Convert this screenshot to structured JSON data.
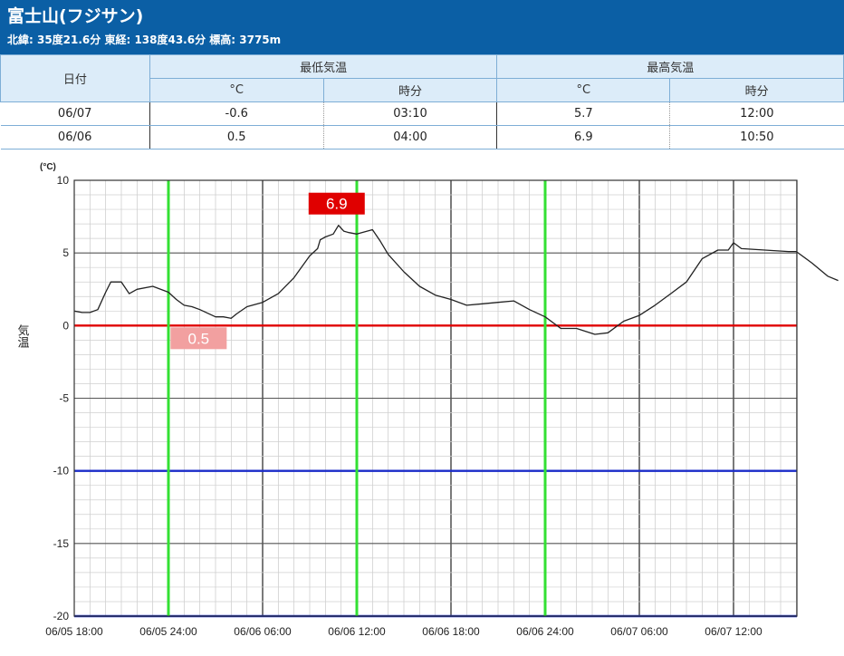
{
  "header": {
    "title": "富士山(フジサン)",
    "subtitle": "北緯: 35度21.6分 東経: 138度43.6分 標高: 3775m",
    "background_color": "#0b5fa5"
  },
  "table": {
    "col_date": "日付",
    "group_min": "最低気温",
    "group_max": "最高気温",
    "unit_c": "°C",
    "unit_time": "時分",
    "rows": [
      {
        "date": "06/07",
        "min_c": "-0.6",
        "min_time": "03:10",
        "max_c": "5.7",
        "max_time": "12:00"
      },
      {
        "date": "06/06",
        "min_c": "0.5",
        "min_time": "04:00",
        "max_c": "6.9",
        "max_time": "10:50"
      }
    ]
  },
  "chart_data": {
    "type": "line",
    "ylabel": "気温",
    "yunit": "(°C)",
    "ylim": [
      -20,
      10
    ],
    "ytick_labels": [
      "10",
      "5",
      "0",
      "-5",
      "-10",
      "-15",
      "-20"
    ],
    "x_start": "06/05 18:00",
    "x_end": "06/07 18:40",
    "xtick_labels": [
      "06/05 18:00",
      "06/05 24:00",
      "06/06 06:00",
      "06/06 12:00",
      "06/06 18:00",
      "06/06 24:00",
      "06/07 06:00",
      "06/07 12:00"
    ],
    "grid": true,
    "series": [
      {
        "color": "#222222",
        "points": [
          [
            "06/05 18:00",
            1.0
          ],
          [
            "06/05 18:30",
            0.9
          ],
          [
            "06/05 19:00",
            0.9
          ],
          [
            "06/05 19:30",
            1.1
          ],
          [
            "06/05 20:00",
            2.3
          ],
          [
            "06/05 20:20",
            3.0
          ],
          [
            "06/05 21:00",
            3.0
          ],
          [
            "06/05 21:30",
            2.2
          ],
          [
            "06/05 22:00",
            2.5
          ],
          [
            "06/05 23:00",
            2.7
          ],
          [
            "06/05 24:00",
            2.3
          ],
          [
            "06/06 00:30",
            1.8
          ],
          [
            "06/06 01:00",
            1.4
          ],
          [
            "06/06 01:30",
            1.3
          ],
          [
            "06/06 02:00",
            1.1
          ],
          [
            "06/06 03:00",
            0.6
          ],
          [
            "06/06 03:30",
            0.6
          ],
          [
            "06/06 04:00",
            0.5
          ],
          [
            "06/06 04:20",
            0.8
          ],
          [
            "06/06 05:00",
            1.3
          ],
          [
            "06/06 06:00",
            1.6
          ],
          [
            "06/06 07:00",
            2.2
          ],
          [
            "06/06 08:00",
            3.3
          ],
          [
            "06/06 09:00",
            4.8
          ],
          [
            "06/06 09:30",
            5.3
          ],
          [
            "06/06 09:40",
            5.9
          ],
          [
            "06/06 10:00",
            6.1
          ],
          [
            "06/06 10:30",
            6.3
          ],
          [
            "06/06 10:50",
            6.9
          ],
          [
            "06/06 11:10",
            6.5
          ],
          [
            "06/06 11:30",
            6.4
          ],
          [
            "06/06 12:00",
            6.3
          ],
          [
            "06/06 13:00",
            6.6
          ],
          [
            "06/06 13:30",
            5.8
          ],
          [
            "06/06 14:00",
            4.9
          ],
          [
            "06/06 15:00",
            3.7
          ],
          [
            "06/06 16:00",
            2.7
          ],
          [
            "06/06 17:00",
            2.1
          ],
          [
            "06/06 18:00",
            1.8
          ],
          [
            "06/06 19:00",
            1.4
          ],
          [
            "06/06 20:00",
            1.5
          ],
          [
            "06/06 21:00",
            1.6
          ],
          [
            "06/06 22:00",
            1.7
          ],
          [
            "06/06 23:00",
            1.1
          ],
          [
            "06/06 24:00",
            0.6
          ],
          [
            "06/07 01:00",
            -0.2
          ],
          [
            "06/07 02:00",
            -0.2
          ],
          [
            "06/07 03:10",
            -0.6
          ],
          [
            "06/07 04:00",
            -0.5
          ],
          [
            "06/07 05:00",
            0.3
          ],
          [
            "06/07 06:00",
            0.7
          ],
          [
            "06/07 07:00",
            1.4
          ],
          [
            "06/07 08:00",
            2.2
          ],
          [
            "06/07 09:00",
            3.0
          ],
          [
            "06/07 10:00",
            4.6
          ],
          [
            "06/07 11:00",
            5.2
          ],
          [
            "06/07 11:40",
            5.2
          ],
          [
            "06/07 12:00",
            5.7
          ],
          [
            "06/07 12:30",
            5.3
          ],
          [
            "06/07 14:00",
            5.2
          ],
          [
            "06/07 15:30",
            5.1
          ],
          [
            "06/07 16:00",
            5.1
          ],
          [
            "06/07 17:00",
            4.3
          ],
          [
            "06/07 18:00",
            3.4
          ],
          [
            "06/07 18:40",
            3.1
          ]
        ]
      }
    ],
    "reference_lines": [
      {
        "y": 0,
        "color": "#e00000"
      },
      {
        "y": -10,
        "color": "#1a2bc8"
      },
      {
        "y": -20,
        "color": "#1a2bc8"
      }
    ],
    "vertical_markers": {
      "color": "#33e033",
      "times": [
        "06/05 24:00",
        "06/06 12:00",
        "06/06 24:00"
      ]
    },
    "annotations": [
      {
        "text": "6.9",
        "at": "06/06 10:50",
        "value": 6.9,
        "fill": "#e00000",
        "text_color": "#ffffff"
      },
      {
        "text": "0.5",
        "at": "06/06 04:00",
        "value": 0.5,
        "fill": "#f2a0a0",
        "text_color": "#ffffff"
      }
    ]
  }
}
